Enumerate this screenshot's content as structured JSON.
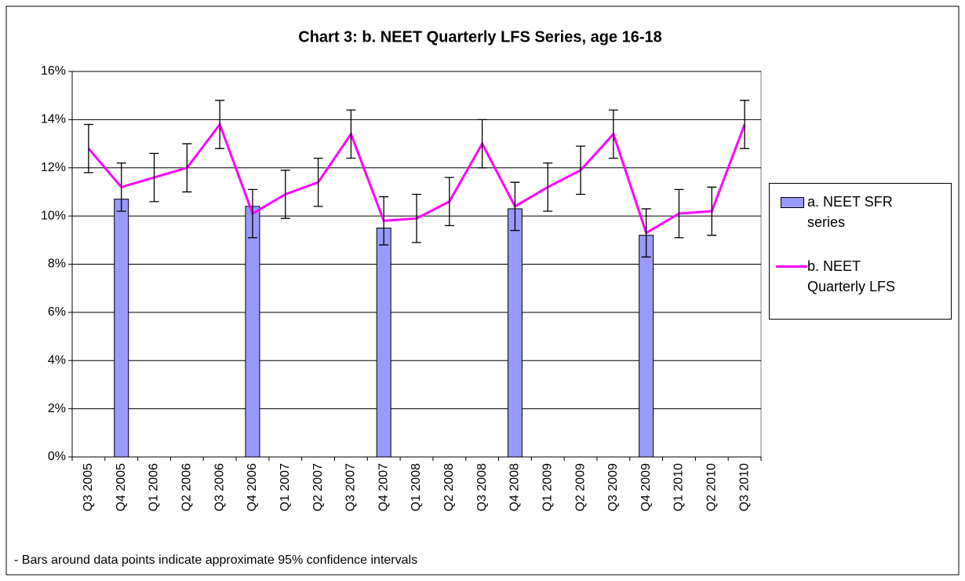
{
  "chart_data": {
    "type": "bar-line",
    "title": "Chart 3: b. NEET Quarterly LFS Series, age 16-18",
    "note": "- Bars around data points indicate approximate 95% confidence intervals",
    "categories": [
      "Q3 2005",
      "Q4 2005",
      "Q1 2006",
      "Q2 2006",
      "Q3 2006",
      "Q4 2006",
      "Q1 2007",
      "Q2 2007",
      "Q3 2007",
      "Q4 2007",
      "Q1 2008",
      "Q2 2008",
      "Q3 2008",
      "Q4 2008",
      "Q1 2009",
      "Q2 2009",
      "Q3 2009",
      "Q4 2009",
      "Q1 2010",
      "Q2 2010",
      "Q3 2010"
    ],
    "series": [
      {
        "name": "a. NEET SFR series",
        "type": "bar",
        "color": "#9999ff",
        "values": [
          null,
          10.7,
          null,
          null,
          null,
          10.4,
          null,
          null,
          null,
          9.5,
          null,
          null,
          null,
          10.3,
          null,
          null,
          null,
          9.2,
          null,
          null,
          null
        ]
      },
      {
        "name": "b. NEET Quarterly LFS",
        "type": "line",
        "color": "#ff00ff",
        "values": [
          12.8,
          11.2,
          11.6,
          12.0,
          13.8,
          10.1,
          10.9,
          11.4,
          13.4,
          9.8,
          9.9,
          10.6,
          13.0,
          10.4,
          11.2,
          11.9,
          13.4,
          9.3,
          10.1,
          10.2,
          13.8
        ],
        "errors": [
          1,
          1,
          1,
          1,
          1,
          1,
          1,
          1,
          1,
          1,
          1,
          1,
          1,
          1,
          1,
          1,
          1,
          1,
          1,
          1,
          1
        ]
      }
    ],
    "ylim": [
      0,
      16
    ],
    "yticks": [
      {
        "value": 0,
        "label": "0%"
      },
      {
        "value": 2,
        "label": "2%"
      },
      {
        "value": 4,
        "label": "4%"
      },
      {
        "value": 6,
        "label": "6%"
      },
      {
        "value": 8,
        "label": "8%"
      },
      {
        "value": 10,
        "label": "10%"
      },
      {
        "value": 12,
        "label": "12%"
      },
      {
        "value": 14,
        "label": "14%"
      },
      {
        "value": 16,
        "label": "16%"
      }
    ],
    "grid": true,
    "legend": "right"
  }
}
